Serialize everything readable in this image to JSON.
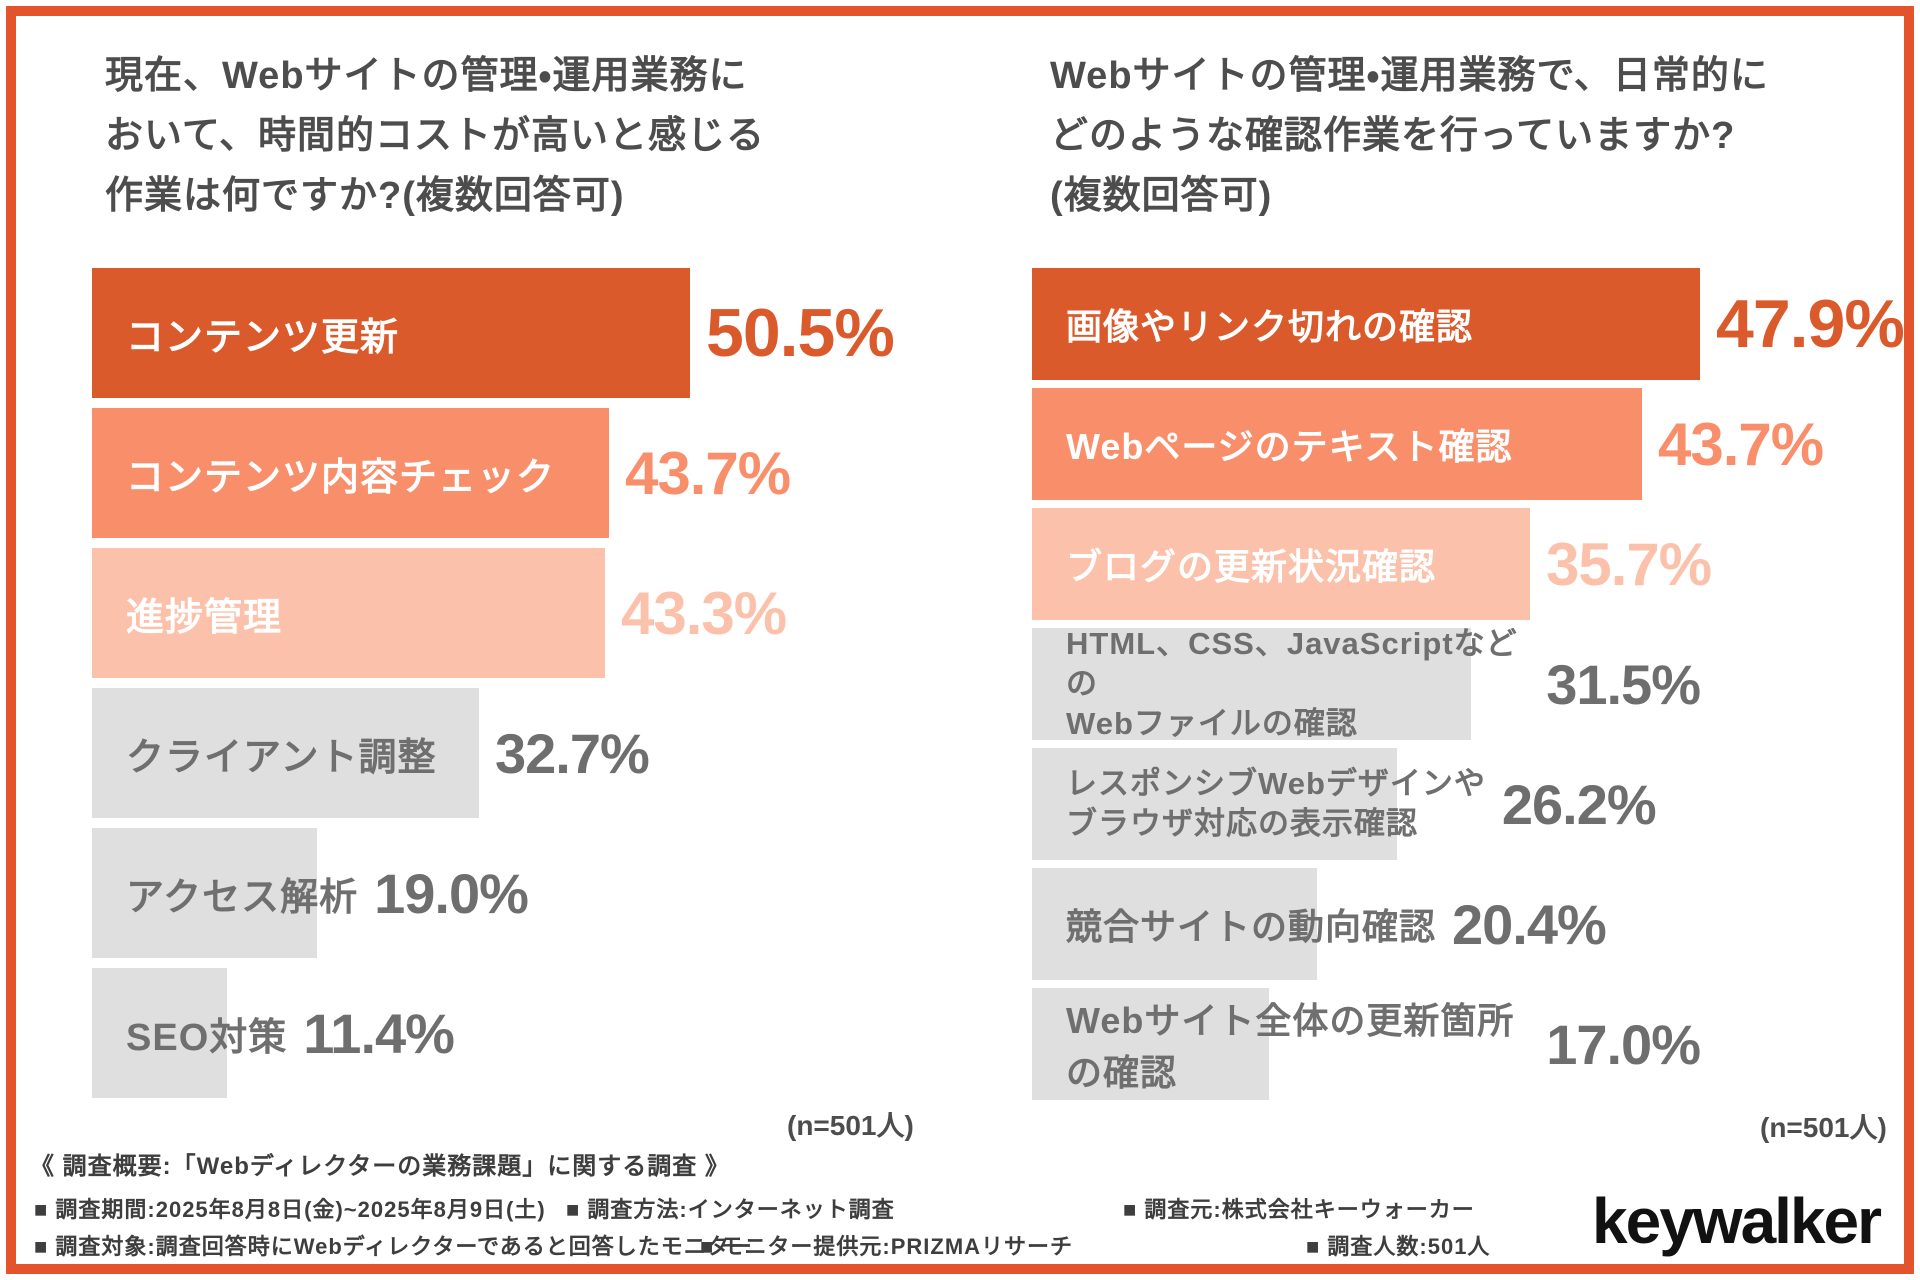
{
  "colors": {
    "frame": "#E3532C",
    "bar_dark": "#DA5A2C",
    "bar_mid": "#F98E6B",
    "bar_light": "#FBC1AB",
    "bar_gray": "#DFDFDF",
    "title_text": "#4D4D4D",
    "gray_text": "#6F6F6F",
    "footer_text": "#3E3E3E",
    "logo_text": "#111111"
  },
  "chart_data": [
    {
      "type": "bar",
      "orientation": "horizontal",
      "unit": "%",
      "xlim": [
        0,
        50.5
      ],
      "title": "現在、Webサイトの管理・運用業務において、時間的コストが高いと感じる作業は何ですか?(複数回答可)",
      "title_lines": [
        "現在、Webサイトの管理・運用業務に",
        "おいて、時間的コストが高いと感じる",
        "作業は何ですか?(複数回答可)"
      ],
      "n_label": "(n=501人)",
      "categories": [
        "コンテンツ更新",
        "コンテンツ内容チェック",
        "進捗管理",
        "クライアント調整",
        "アクセス解析",
        "SEO対策"
      ],
      "values": [
        50.5,
        43.7,
        43.3,
        32.7,
        19.0,
        11.4
      ],
      "items": [
        {
          "label": "コンテンツ更新",
          "value": 50.5,
          "display": "50.5%",
          "tone": "dark"
        },
        {
          "label": "コンテンツ内容チェック",
          "value": 43.7,
          "display": "43.7%",
          "tone": "mid"
        },
        {
          "label": "進捗管理",
          "value": 43.3,
          "display": "43.3%",
          "tone": "light"
        },
        {
          "label": "クライアント調整",
          "value": 32.7,
          "display": "32.7%",
          "tone": "gray"
        },
        {
          "label": "アクセス解析",
          "value": 19.0,
          "display": "19.0%",
          "tone": "gray"
        },
        {
          "label": "SEO対策",
          "value": 11.4,
          "display": "11.4%",
          "tone": "gray"
        }
      ]
    },
    {
      "type": "bar",
      "orientation": "horizontal",
      "unit": "%",
      "xlim": [
        0,
        47.9
      ],
      "title": "Webサイトの管理・運用業務で、日常的にどのような確認作業を行っていますか?(複数回答可)",
      "title_lines": [
        "Webサイトの管理・運用業務で、日常的に",
        "どのような確認作業を行っていますか?",
        "(複数回答可)"
      ],
      "n_label": "(n=501人)",
      "categories": [
        "画像やリンク切れの確認",
        "Webページのテキスト確認",
        "ブログの更新状況確認",
        "HTML、CSS、JavaScriptなどのWebファイルの確認",
        "レスポンシブWebデザインやブラウザ対応の表示確認",
        "競合サイトの動向確認",
        "Webサイト全体の更新箇所の確認"
      ],
      "values": [
        47.9,
        43.7,
        35.7,
        31.5,
        26.2,
        20.4,
        17.0
      ],
      "items": [
        {
          "label": "画像やリンク切れの確認",
          "value": 47.9,
          "display": "47.9%",
          "tone": "dark"
        },
        {
          "label": "Webページのテキスト確認",
          "value": 43.7,
          "display": "43.7%",
          "tone": "mid"
        },
        {
          "label": "ブログの更新状況確認",
          "value": 35.7,
          "display": "35.7%",
          "tone": "light"
        },
        {
          "label": "HTML、CSS、JavaScriptなどの\nWebファイルの確認",
          "value": 31.5,
          "display": "31.5%",
          "tone": "gray"
        },
        {
          "label": "レスポンシブWebデザインや\nブラウザ対応の表示確認",
          "value": 26.2,
          "display": "26.2%",
          "tone": "gray"
        },
        {
          "label": "競合サイトの動向確認",
          "value": 20.4,
          "display": "20.4%",
          "tone": "gray"
        },
        {
          "label": "Webサイト全体の更新箇所の確認",
          "value": 17.0,
          "display": "17.0%",
          "tone": "gray"
        }
      ]
    }
  ],
  "footer": {
    "heading": "《 調査概要:「Webディレクターの業務課題」に関する調査 》",
    "row1": [
      "■ 調査期間:2025年8月8日(金)~2025年8月9日(土)",
      "■ 調査方法:インターネット調査",
      "■ 調査元:株式会社キーウォーカー"
    ],
    "row2": [
      "■ 調査対象:調査回答時にWebディレクターであると回答したモニター",
      "■ モニター提供元:PRIZMAリサーチ",
      "■ 調査人数:501人"
    ]
  },
  "brand": {
    "logo": "keywalker"
  }
}
